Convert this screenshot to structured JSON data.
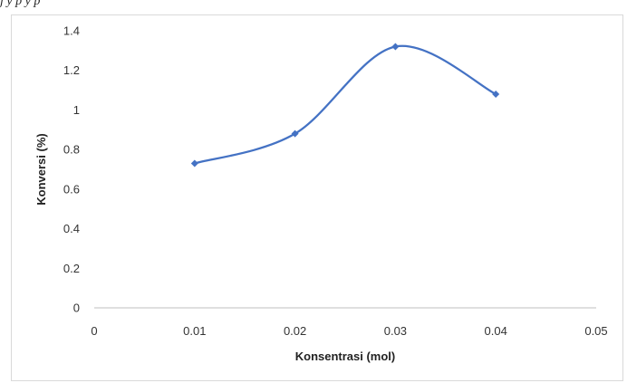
{
  "caption": "j                                    y                                               p            y          p",
  "chart_data": {
    "type": "line",
    "title": "",
    "xlabel": "Konsentrasi (mol)",
    "ylabel": "Konversi (%)",
    "x": [
      0.01,
      0.02,
      0.03,
      0.04
    ],
    "series": [
      {
        "values": [
          0.73,
          0.88,
          1.32,
          1.08
        ]
      }
    ],
    "xlim": [
      0,
      0.05
    ],
    "ylim": [
      0,
      1.4
    ],
    "x_ticks": [
      "0",
      "0.01",
      "0.02",
      "0.03",
      "0.04",
      "0.05"
    ],
    "y_ticks": [
      "0",
      "0.2",
      "0.4",
      "0.6",
      "0.8",
      "1",
      "1.2",
      "1.4"
    ],
    "smooth": true,
    "grid": false,
    "legend": "none",
    "line_color": "#4472C4"
  }
}
